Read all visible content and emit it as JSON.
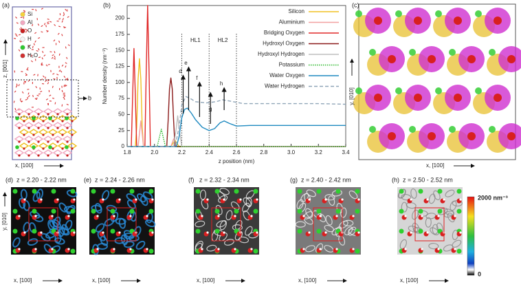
{
  "chart_data": {
    "type": "line",
    "label": "(b)",
    "xlabel": "z position (nm)",
    "ylabel": "Number density (nm⁻³)",
    "xlim": [
      1.8,
      3.4
    ],
    "ylim": [
      0,
      220
    ],
    "xticks": [
      1.8,
      {
        "value": 2,
        "label": "2.0"
      },
      2.2,
      2.4,
      2.6,
      2.8,
      {
        "value": 3,
        "label": "3.0"
      },
      3.2,
      3.4
    ],
    "yticks": [
      0,
      25,
      50,
      75,
      100,
      125,
      150,
      175,
      200
    ],
    "legend": "upper right",
    "vlines": [
      2.2,
      2.4,
      2.6
    ],
    "regions": [
      "HL1",
      "HL2"
    ],
    "annotations": [
      {
        "text": "d",
        "x": 2.21
      },
      {
        "text": "e",
        "x": 2.25
      },
      {
        "text": "f",
        "x": 2.33
      },
      {
        "text": "g",
        "x": 2.41
      },
      {
        "text": "h",
        "x": 2.51
      }
    ],
    "series": [
      {
        "name": "Silicon",
        "color": "#f0c020",
        "style": "solid",
        "x": [
          1.8,
          1.86,
          1.87,
          1.88,
          1.89,
          1.9,
          1.91,
          1.92,
          2.12,
          2.15,
          2.18,
          3.4
        ],
        "values": [
          0,
          0,
          30,
          105,
          137,
          105,
          30,
          0,
          0,
          10,
          0,
          0
        ]
      },
      {
        "name": "Aluminium",
        "color": "#f2a0a0",
        "style": "solid",
        "x": [
          1.8,
          1.88,
          1.9,
          1.92,
          2.12,
          2.14,
          2.16,
          3.4
        ],
        "values": [
          0,
          0,
          40,
          0,
          0,
          12,
          0,
          0
        ]
      },
      {
        "name": "Bridging Oxygen",
        "color": "#e02828",
        "style": "solid",
        "x": [
          1.8,
          1.83,
          1.84,
          1.85,
          1.86,
          1.87,
          1.93,
          1.94,
          1.95,
          1.96,
          1.97,
          3.4
        ],
        "values": [
          0,
          0,
          80,
          153,
          80,
          0,
          0,
          120,
          220,
          120,
          0,
          0
        ]
      },
      {
        "name": "Hydroxyl Oxygen",
        "color": "#8b1a1a",
        "style": "solid",
        "x": [
          1.8,
          2.09,
          2.1,
          2.11,
          2.12,
          2.13,
          2.14,
          2.15,
          3.4
        ],
        "values": [
          0,
          0,
          40,
          90,
          107,
          90,
          40,
          0,
          0
        ]
      },
      {
        "name": "Hydroxyl Hydrogen",
        "color": "#bdbdbd",
        "style": "solid",
        "x": [
          1.8,
          2.14,
          2.16,
          2.17,
          2.18,
          2.2,
          3.4
        ],
        "values": [
          0,
          0,
          30,
          48,
          30,
          0,
          0
        ]
      },
      {
        "name": "Potassium",
        "color": "#22b522",
        "style": "dotted",
        "x": [
          1.8,
          2.02,
          2.04,
          2.05,
          2.06,
          2.08,
          3.4
        ],
        "values": [
          0,
          0,
          18,
          27,
          18,
          0,
          0
        ]
      },
      {
        "name": "Water Oxygen",
        "color": "#1f8ac0",
        "style": "solid",
        "x": [
          1.8,
          2.16,
          2.18,
          2.2,
          2.22,
          2.24,
          2.27,
          2.3,
          2.35,
          2.4,
          2.44,
          2.48,
          2.51,
          2.55,
          2.6,
          2.7,
          2.8,
          3.0,
          3.2,
          3.4
        ],
        "values": [
          0,
          0,
          15,
          45,
          58,
          60,
          52,
          42,
          30,
          25,
          28,
          37,
          40,
          36,
          32,
          33,
          33,
          33,
          33,
          33
        ]
      },
      {
        "name": "Water Hydrogen",
        "color": "#8fa5b8",
        "style": "dashed",
        "x": [
          1.8,
          2.15,
          2.18,
          2.2,
          2.23,
          2.27,
          2.3,
          2.38,
          2.45,
          2.5,
          2.55,
          2.65,
          2.8,
          3.0,
          3.2,
          3.4
        ],
        "values": [
          0,
          0,
          30,
          65,
          78,
          74,
          70,
          68,
          70,
          73,
          71,
          67,
          67,
          67,
          67,
          66
        ]
      }
    ]
  },
  "panels": {
    "a": {
      "label": "(a)",
      "y_axis": "z, [001]",
      "x_axis": "x, [100]",
      "pointer": "b",
      "legend": [
        {
          "name": "Si",
          "color": "#f5d23a"
        },
        {
          "name": "Al",
          "color": "#f2a8c0"
        },
        {
          "name": "O",
          "color": "#c81e1e"
        },
        {
          "name": "H",
          "color": "#f4f4f4"
        },
        {
          "name": "K",
          "color": "#2ec82e"
        },
        {
          "name": "H₂O",
          "color": "#d03030"
        }
      ]
    },
    "c": {
      "label": "(c)",
      "y_axis": "y, [010]",
      "x_axis": "x, [100]"
    },
    "slices": [
      {
        "label": "(d)",
        "title": "z = 2.20 - 2.22 nm",
        "x_axis": "x, [100]"
      },
      {
        "label": "(e)",
        "title": "z = 2.24 - 2.26 nm",
        "x_axis": "x, [100]"
      },
      {
        "label": "(f)",
        "title": "z = 2.32 - 2.34 nm",
        "x_axis": "x, [100]"
      },
      {
        "label": "(g)",
        "title": "z = 2.40 - 2.42 nm",
        "x_axis": "x, [100]"
      },
      {
        "label": "(h)",
        "title": "z = 2.50 - 2.52 nm",
        "x_axis": "x, [100]"
      }
    ],
    "slice_y_axis": "y, [010]",
    "colorbar": {
      "max": "2000 nm⁻³",
      "min": "0"
    }
  }
}
